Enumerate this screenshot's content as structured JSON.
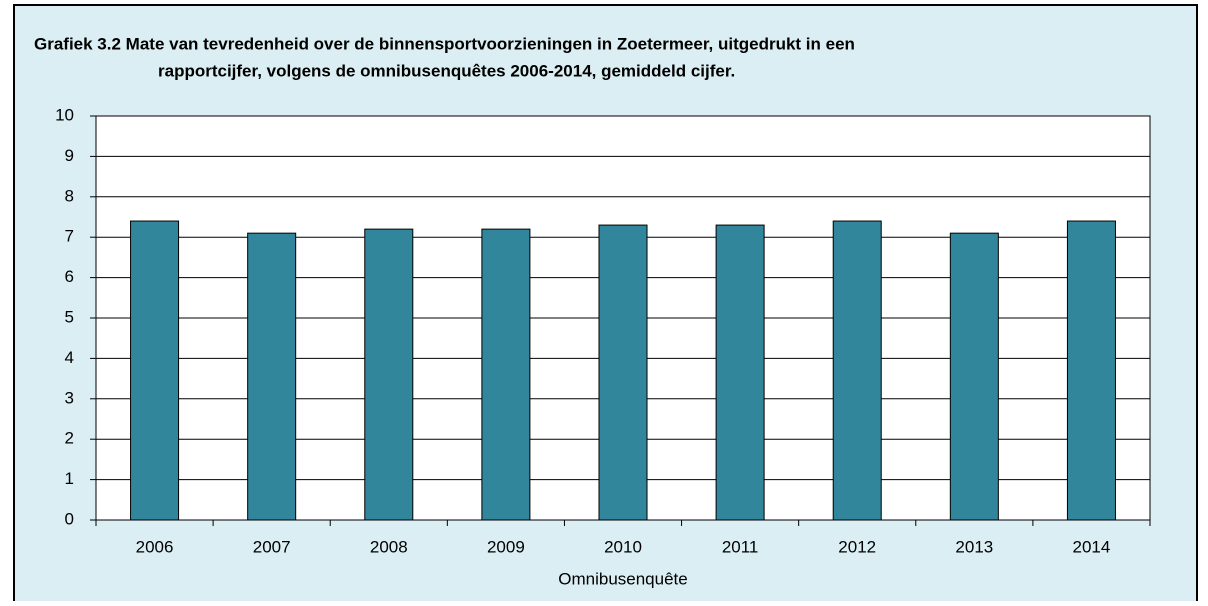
{
  "chart_data": {
    "type": "bar",
    "title": [
      "Grafiek 3.2  Mate van tevredenheid over de binnensportvoorzieningen in Zoetermeer, uitgedrukt in een",
      "rapportcijfer, volgens de omnibusenquêtes 2006-2014, gemiddeld cijfer."
    ],
    "x_label": "Omnibusenquête",
    "categories": [
      "2006",
      "2007",
      "2008",
      "2009",
      "2010",
      "2011",
      "2012",
      "2013",
      "2014"
    ],
    "values": [
      7.4,
      7.1,
      7.2,
      7.2,
      7.3,
      7.3,
      7.4,
      7.1,
      7.4
    ],
    "color": "#31869b",
    "ylim": [
      0,
      10
    ],
    "yticks": [
      0,
      1,
      2,
      3,
      4,
      5,
      6,
      7,
      8,
      9,
      10
    ],
    "grid": true
  }
}
